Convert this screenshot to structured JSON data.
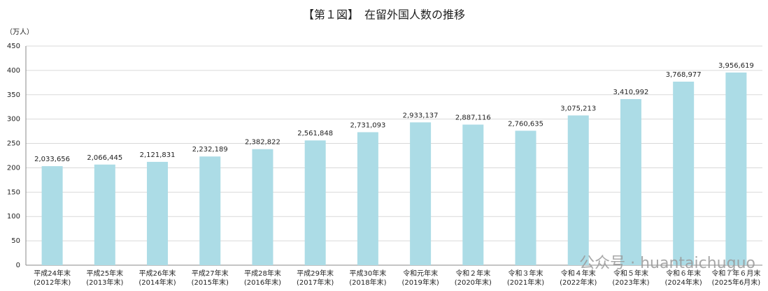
{
  "chart_data": {
    "type": "bar",
    "title": "【第１図】　在留外国人数の推移",
    "y_label": "（万人）",
    "categories": [
      "平成24年末",
      "平成25年末",
      "平成26年末",
      "平成27年末",
      "平成28年末",
      "平成29年末",
      "平成30年末",
      "令和元年末",
      "令和２年末",
      "令和３年末",
      "令和４年末",
      "令和５年末",
      "令和６年末",
      "令和７年６月末"
    ],
    "categories_sub": [
      "(2012年末)",
      "(2013年末)",
      "(2014年末)",
      "(2015年末)",
      "(2016年末)",
      "(2017年末)",
      "(2018年末)",
      "(2019年末)",
      "(2020年末)",
      "(2021年末)",
      "(2022年末)",
      "(2023年末)",
      "(2024年末)",
      "(2025年6月末)"
    ],
    "values": [
      203.3656,
      206.6445,
      212.1831,
      223.2189,
      238.2822,
      256.1848,
      273.1093,
      293.3137,
      288.7116,
      276.0635,
      307.5213,
      341.0992,
      376.8977,
      395.6619
    ],
    "value_labels": [
      "2,033,656",
      "2,066,445",
      "2,121,831",
      "2,232,189",
      "2,382,822",
      "2,561,848",
      "2,731,093",
      "2,933,137",
      "2,887,116",
      "2,760,635",
      "3,075,213",
      "3,410,992",
      "3,768,977",
      "3,956,619"
    ],
    "color": "#acdce6",
    "ylim": [
      0,
      450
    ],
    "yticks": [
      0,
      50,
      100,
      150,
      200,
      250,
      300,
      350,
      400,
      450
    ],
    "grid": true,
    "watermark": "公众号 · huantaichuguo"
  }
}
